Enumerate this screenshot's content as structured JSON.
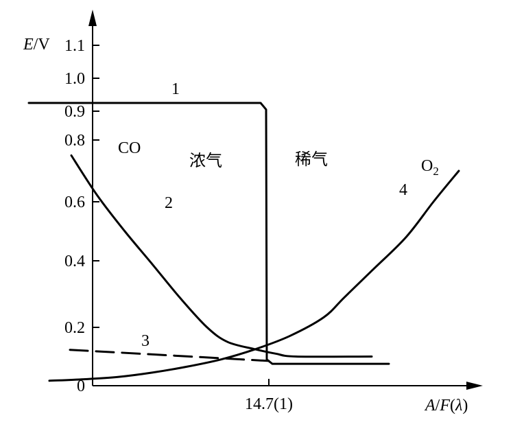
{
  "chart_data": {
    "type": "line",
    "ylabel": {
      "italic": "E",
      "rest": "/V"
    },
    "xlabel": {
      "a": "A",
      "slash": "/",
      "f": "F",
      "open": "(",
      "lambda": "λ",
      "close": ")"
    },
    "yticks": [
      {
        "value": 0,
        "label": "0"
      },
      {
        "value": 0.2,
        "label": "0.2"
      },
      {
        "value": 0.4,
        "label": "0.4"
      },
      {
        "value": 0.6,
        "label": "0.6"
      },
      {
        "value": 0.8,
        "label": "0.8"
      },
      {
        "value": 0.9,
        "label": "0.9"
      },
      {
        "value": 1.0,
        "label": "1.0"
      },
      {
        "value": 1.1,
        "label": "1.1"
      }
    ],
    "xticks": [
      {
        "value": 14.7,
        "label": "14.7(1)"
      }
    ],
    "xlim": [
      10.5,
      17.7
    ],
    "ylim": [
      0,
      1.2
    ],
    "regions": {
      "rich": "浓气",
      "lean": "稀气"
    },
    "series": [
      {
        "name": "1",
        "style": "solid",
        "points": [
          [
            11.2,
            0.925
          ],
          [
            14.58,
            0.925
          ],
          [
            14.66,
            0.905
          ],
          [
            14.67,
            0.09
          ],
          [
            14.75,
            0.075
          ],
          [
            16.45,
            0.075
          ]
        ]
      },
      {
        "name": "2",
        "species": "CO",
        "style": "solid",
        "points": [
          [
            11.82,
            0.75
          ],
          [
            12.2,
            0.62
          ],
          [
            12.6,
            0.5
          ],
          [
            13.0,
            0.39
          ],
          [
            13.4,
            0.29
          ],
          [
            13.8,
            0.2
          ],
          [
            14.1,
            0.15
          ],
          [
            14.5,
            0.125
          ],
          [
            14.8,
            0.11
          ],
          [
            15.1,
            0.1
          ],
          [
            16.2,
            0.1
          ]
        ]
      },
      {
        "name": "3",
        "style": "dashed",
        "points": [
          [
            11.8,
            0.123
          ],
          [
            14.7,
            0.085
          ]
        ]
      },
      {
        "name": "4",
        "species": "O",
        "species_sub": "2",
        "style": "solid",
        "points": [
          [
            11.5,
            0.017
          ],
          [
            12.0,
            0.022
          ],
          [
            12.5,
            0.03
          ],
          [
            13.0,
            0.045
          ],
          [
            13.5,
            0.065
          ],
          [
            14.0,
            0.09
          ],
          [
            14.5,
            0.125
          ],
          [
            15.0,
            0.17
          ],
          [
            15.5,
            0.23
          ],
          [
            15.8,
            0.29
          ],
          [
            16.2,
            0.37
          ],
          [
            16.7,
            0.48
          ],
          [
            17.1,
            0.6
          ],
          [
            17.47,
            0.7
          ]
        ]
      }
    ]
  }
}
